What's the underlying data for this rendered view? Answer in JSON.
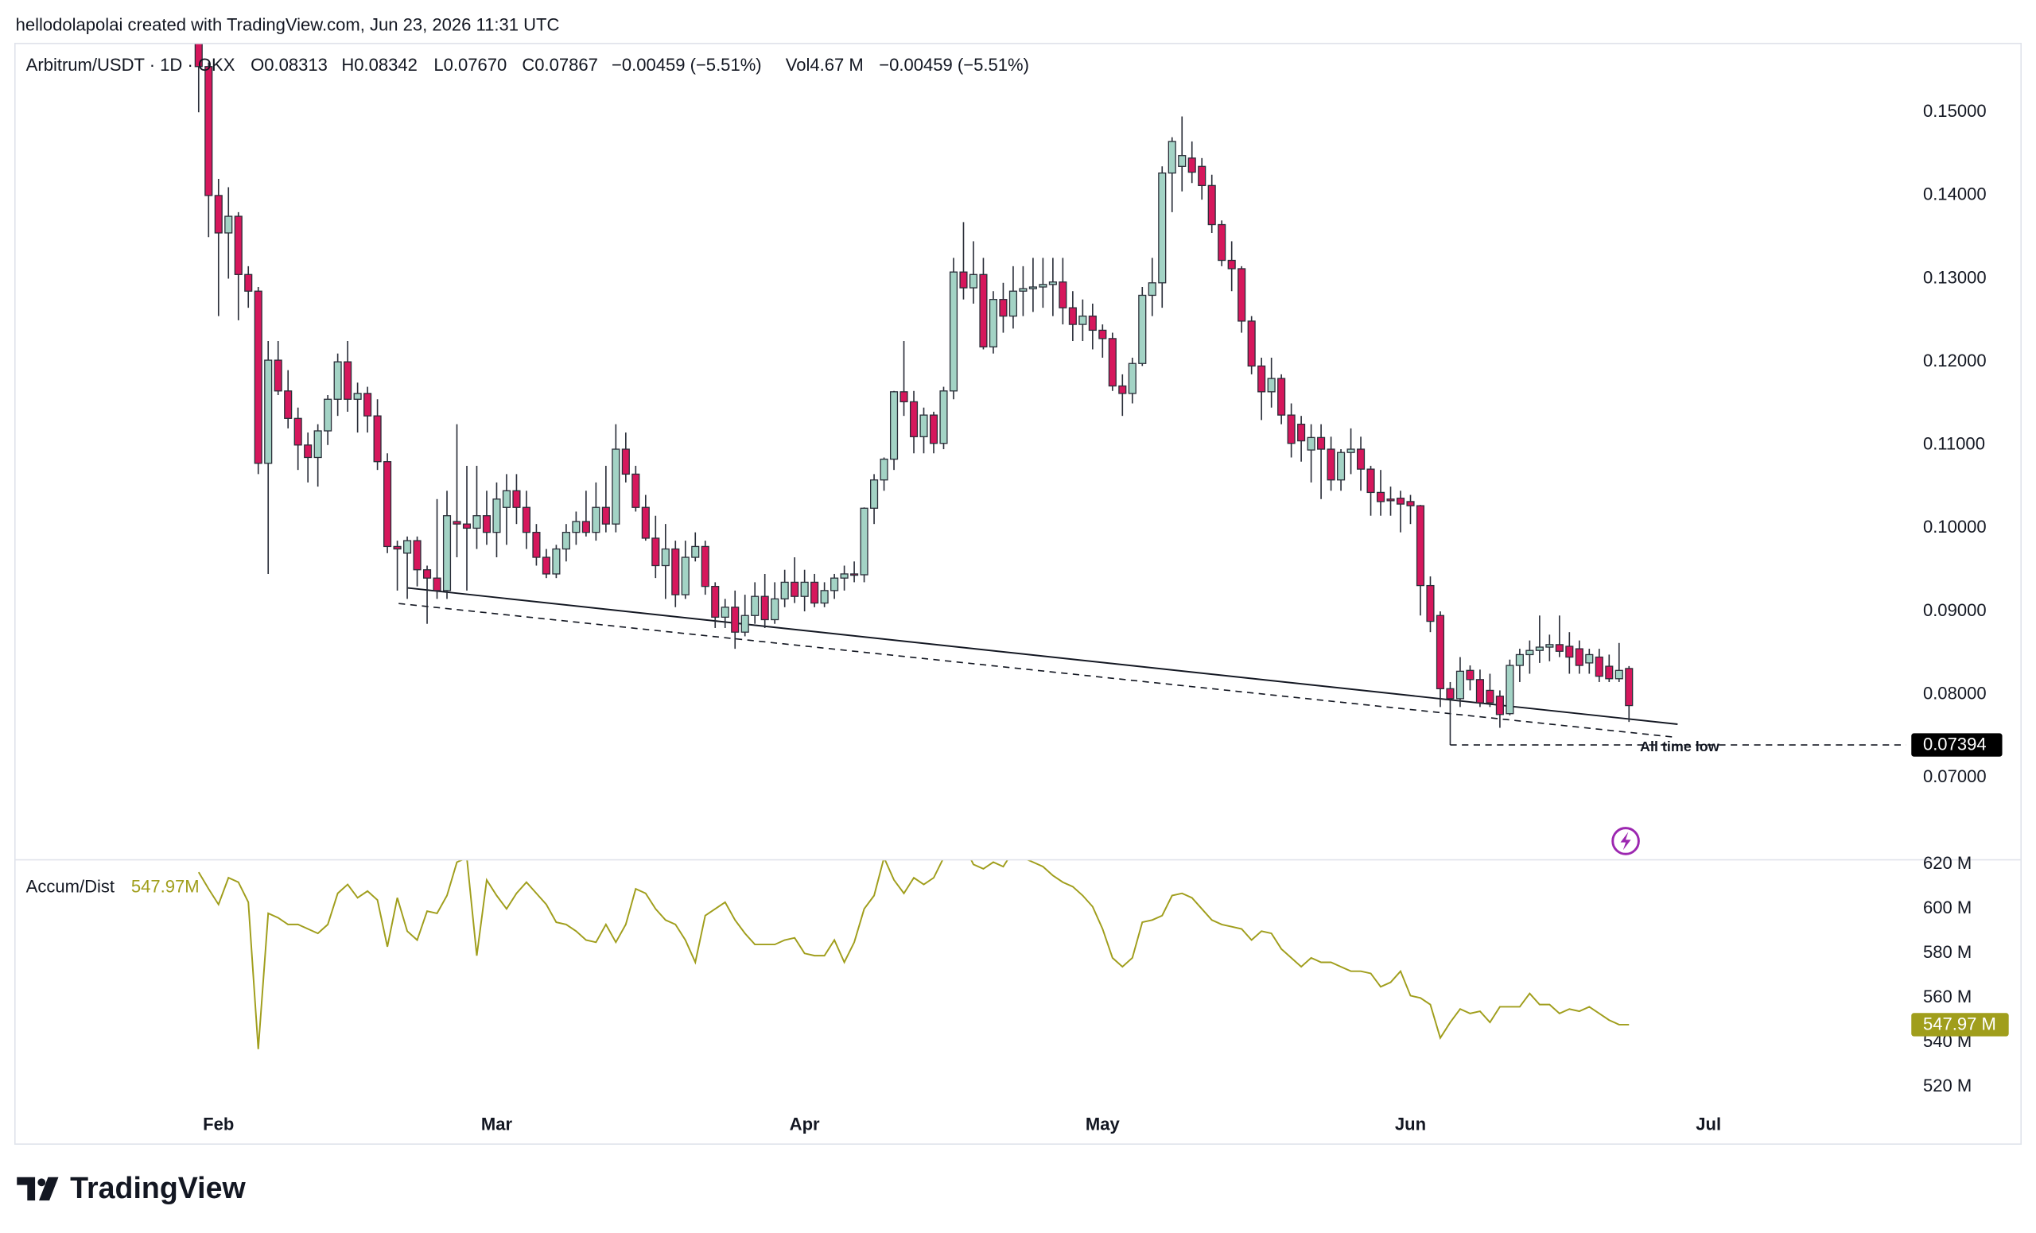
{
  "header": {
    "credit": "hellodolapolai created with TradingView.com, Jun 23, 2026 11:31 UTC"
  },
  "chart_data": [
    {
      "type": "candlestick",
      "title": "Arbitrum/USDT · 1D · OKX",
      "legend_values": [
        "O0.08313",
        "H0.08342",
        "L0.07670",
        "C0.07867",
        "−0.00459 (−5.51%)"
      ],
      "volume_label": "Vol4.67 M",
      "volume_change": "−0.00459 (−5.51%)",
      "up_color": "#a3d3c5",
      "down_color": "#d6175c",
      "ohlc": [
        [
          0.16,
          0.162,
          0.15,
          0.1555
        ],
        [
          0.1555,
          0.156,
          0.135,
          0.14
        ],
        [
          0.14,
          0.142,
          0.1255,
          0.1355
        ],
        [
          0.1355,
          0.141,
          0.13,
          0.1375
        ],
        [
          0.1375,
          0.138,
          0.125,
          0.1305
        ],
        [
          0.1305,
          0.1315,
          0.1265,
          0.1285
        ],
        [
          0.1285,
          0.129,
          0.1065,
          0.1078
        ],
        [
          0.1078,
          0.1225,
          0.0945,
          0.1202
        ],
        [
          0.1202,
          0.1225,
          0.116,
          0.1165
        ],
        [
          0.1165,
          0.119,
          0.112,
          0.1132
        ],
        [
          0.1132,
          0.1145,
          0.107,
          0.11
        ],
        [
          0.11,
          0.1115,
          0.1055,
          0.1085
        ],
        [
          0.1085,
          0.1125,
          0.105,
          0.1117
        ],
        [
          0.1117,
          0.116,
          0.11,
          0.1155
        ],
        [
          0.1155,
          0.121,
          0.1135,
          0.12
        ],
        [
          0.12,
          0.1225,
          0.114,
          0.1155
        ],
        [
          0.1155,
          0.1175,
          0.1115,
          0.1162
        ],
        [
          0.1162,
          0.117,
          0.1115,
          0.1135
        ],
        [
          0.1135,
          0.1155,
          0.107,
          0.108
        ],
        [
          0.108,
          0.109,
          0.097,
          0.0978
        ],
        [
          0.0978,
          0.0985,
          0.0925,
          0.0975
        ],
        [
          0.097,
          0.099,
          0.0915,
          0.0985
        ],
        [
          0.0985,
          0.099,
          0.093,
          0.095
        ],
        [
          0.095,
          0.0955,
          0.0885,
          0.094
        ],
        [
          0.094,
          0.1035,
          0.0915,
          0.0925
        ],
        [
          0.0925,
          0.1045,
          0.0915,
          0.1015
        ],
        [
          0.1008,
          0.1125,
          0.0965,
          0.1005
        ],
        [
          0.1005,
          0.1075,
          0.0925,
          0.1
        ],
        [
          0.1,
          0.1075,
          0.0975,
          0.1015
        ],
        [
          0.1015,
          0.1045,
          0.098,
          0.0995
        ],
        [
          0.0995,
          0.1055,
          0.0965,
          0.1035
        ],
        [
          0.1025,
          0.1065,
          0.098,
          0.1045
        ],
        [
          0.1045,
          0.1065,
          0.1005,
          0.1025
        ],
        [
          0.1025,
          0.1045,
          0.0975,
          0.0995
        ],
        [
          0.0995,
          0.1005,
          0.0955,
          0.0965
        ],
        [
          0.0965,
          0.0975,
          0.094,
          0.0945
        ],
        [
          0.0945,
          0.098,
          0.094,
          0.0975
        ],
        [
          0.0975,
          0.1005,
          0.096,
          0.0995
        ],
        [
          0.0995,
          0.102,
          0.098,
          0.1008
        ],
        [
          0.1008,
          0.1045,
          0.099,
          0.0995
        ],
        [
          0.0995,
          0.1055,
          0.0985,
          0.1025
        ],
        [
          0.1025,
          0.1075,
          0.0995,
          0.1005
        ],
        [
          0.1005,
          0.1125,
          0.0995,
          0.1095
        ],
        [
          0.1095,
          0.1115,
          0.1055,
          0.1065
        ],
        [
          0.1065,
          0.1075,
          0.102,
          0.1025
        ],
        [
          0.1025,
          0.104,
          0.0985,
          0.0988
        ],
        [
          0.0988,
          0.1015,
          0.094,
          0.0955
        ],
        [
          0.0955,
          0.1005,
          0.0915,
          0.0975
        ],
        [
          0.0975,
          0.0985,
          0.0905,
          0.092
        ],
        [
          0.092,
          0.0985,
          0.0915,
          0.0965
        ],
        [
          0.0965,
          0.0995,
          0.096,
          0.0978
        ],
        [
          0.0978,
          0.0985,
          0.092,
          0.093
        ],
        [
          0.093,
          0.0935,
          0.088,
          0.0893
        ],
        [
          0.0893,
          0.0915,
          0.088,
          0.0905
        ],
        [
          0.0905,
          0.0925,
          0.0855,
          0.0875
        ],
        [
          0.0875,
          0.092,
          0.087,
          0.0895
        ],
        [
          0.0895,
          0.0935,
          0.0885,
          0.0918
        ],
        [
          0.0918,
          0.0945,
          0.088,
          0.089
        ],
        [
          0.089,
          0.0935,
          0.0885,
          0.0915
        ],
        [
          0.0915,
          0.095,
          0.0905,
          0.0935
        ],
        [
          0.0935,
          0.0965,
          0.091,
          0.0918
        ],
        [
          0.0918,
          0.095,
          0.09,
          0.0935
        ],
        [
          0.0935,
          0.0945,
          0.0905,
          0.091
        ],
        [
          0.091,
          0.0935,
          0.0905,
          0.0925
        ],
        [
          0.0925,
          0.0945,
          0.0915,
          0.094
        ],
        [
          0.094,
          0.0955,
          0.0925,
          0.0945
        ],
        [
          0.0945,
          0.096,
          0.0935,
          0.0944
        ],
        [
          0.0944,
          0.1025,
          0.0935,
          0.1024
        ],
        [
          0.1024,
          0.1065,
          0.1005,
          0.1058
        ],
        [
          0.1058,
          0.1085,
          0.1045,
          0.1083
        ],
        [
          0.1083,
          0.1165,
          0.107,
          0.1164
        ],
        [
          0.1164,
          0.1225,
          0.1135,
          0.1152
        ],
        [
          0.1152,
          0.1165,
          0.109,
          0.111
        ],
        [
          0.111,
          0.1145,
          0.109,
          0.1136
        ],
        [
          0.1136,
          0.114,
          0.109,
          0.1102
        ],
        [
          0.1102,
          0.117,
          0.1095,
          0.1165
        ],
        [
          0.1165,
          0.1325,
          0.1155,
          0.1308
        ],
        [
          0.1308,
          0.1368,
          0.1275,
          0.1289
        ],
        [
          0.1289,
          0.1345,
          0.127,
          0.1305
        ],
        [
          0.1305,
          0.1325,
          0.1215,
          0.1218
        ],
        [
          0.1218,
          0.1285,
          0.121,
          0.1275
        ],
        [
          0.1275,
          0.1295,
          0.1235,
          0.1255
        ],
        [
          0.1255,
          0.1315,
          0.124,
          0.1285
        ],
        [
          0.1285,
          0.1315,
          0.1255,
          0.1288
        ],
        [
          0.1288,
          0.1325,
          0.126,
          0.129
        ],
        [
          0.129,
          0.1325,
          0.1265,
          0.1293
        ],
        [
          0.1293,
          0.1325,
          0.1255,
          0.1296
        ],
        [
          0.1296,
          0.1325,
          0.1245,
          0.1265
        ],
        [
          0.1265,
          0.1285,
          0.1225,
          0.1245
        ],
        [
          0.1245,
          0.1275,
          0.1225,
          0.1255
        ],
        [
          0.1255,
          0.127,
          0.1215,
          0.1238
        ],
        [
          0.1238,
          0.1245,
          0.1205,
          0.1228
        ],
        [
          0.1228,
          0.1235,
          0.1165,
          0.1171
        ],
        [
          0.1171,
          0.1185,
          0.1135,
          0.1162
        ],
        [
          0.1162,
          0.1205,
          0.115,
          0.1198
        ],
        [
          0.1198,
          0.129,
          0.1195,
          0.128
        ],
        [
          0.128,
          0.1325,
          0.1255,
          0.1295
        ],
        [
          0.1295,
          0.1435,
          0.1265,
          0.1427
        ],
        [
          0.1427,
          0.147,
          0.138,
          0.1465
        ],
        [
          0.1435,
          0.1495,
          0.1405,
          0.1448
        ],
        [
          0.1445,
          0.1465,
          0.1415,
          0.1428
        ],
        [
          0.1435,
          0.1445,
          0.1395,
          0.1412
        ],
        [
          0.1412,
          0.1425,
          0.1355,
          0.1365
        ],
        [
          0.1365,
          0.137,
          0.1315,
          0.1322
        ],
        [
          0.1322,
          0.1345,
          0.1285,
          0.1312
        ],
        [
          0.1312,
          0.1315,
          0.1235,
          0.1249
        ],
        [
          0.1249,
          0.1255,
          0.1185,
          0.1195
        ],
        [
          0.1195,
          0.1205,
          0.113,
          0.1164
        ],
        [
          0.1164,
          0.1205,
          0.1145,
          0.118
        ],
        [
          0.118,
          0.1185,
          0.1125,
          0.1136
        ],
        [
          0.1136,
          0.115,
          0.1085,
          0.1102
        ],
        [
          0.1125,
          0.1135,
          0.108,
          0.1105
        ],
        [
          0.1094,
          0.1125,
          0.1055,
          0.1109
        ],
        [
          0.1109,
          0.1125,
          0.1035,
          0.1095
        ],
        [
          0.1095,
          0.111,
          0.1045,
          0.1058
        ],
        [
          0.1058,
          0.1095,
          0.1045,
          0.1091
        ],
        [
          0.1091,
          0.112,
          0.1065,
          0.1095
        ],
        [
          0.1095,
          0.111,
          0.1045,
          0.1071
        ],
        [
          0.1071,
          0.1075,
          0.1015,
          0.1043
        ],
        [
          0.1043,
          0.107,
          0.1015,
          0.1032
        ],
        [
          0.1035,
          0.105,
          0.1015,
          0.1033
        ],
        [
          0.1036,
          0.1045,
          0.0995,
          0.1029
        ],
        [
          0.1032,
          0.104,
          0.1005,
          0.1027
        ],
        [
          0.1027,
          0.1028,
          0.0895,
          0.0931
        ],
        [
          0.0931,
          0.0942,
          0.0875,
          0.0888
        ],
        [
          0.0895,
          0.09,
          0.0785,
          0.0807
        ],
        [
          0.0807,
          0.0815,
          0.07394,
          0.0795
        ],
        [
          0.0795,
          0.0845,
          0.0785,
          0.0828
        ],
        [
          0.0829,
          0.0835,
          0.0805,
          0.0818
        ],
        [
          0.0818,
          0.083,
          0.0785,
          0.079
        ],
        [
          0.0805,
          0.0825,
          0.0785,
          0.079
        ],
        [
          0.0798,
          0.0805,
          0.076,
          0.0776
        ],
        [
          0.0777,
          0.0842,
          0.0775,
          0.0835
        ],
        [
          0.0835,
          0.0855,
          0.0815,
          0.0848
        ],
        [
          0.0848,
          0.0865,
          0.0825,
          0.0853
        ],
        [
          0.0853,
          0.0895,
          0.0838,
          0.0857
        ],
        [
          0.0857,
          0.0872,
          0.084,
          0.086
        ],
        [
          0.086,
          0.0895,
          0.0845,
          0.0852
        ],
        [
          0.0858,
          0.0875,
          0.0825,
          0.0845
        ],
        [
          0.0855,
          0.0865,
          0.0825,
          0.0835
        ],
        [
          0.0838,
          0.0855,
          0.0825,
          0.0848
        ],
        [
          0.0845,
          0.0855,
          0.0815,
          0.0822
        ],
        [
          0.0834,
          0.0848,
          0.0815,
          0.0819
        ],
        [
          0.0819,
          0.0862,
          0.0815,
          0.0829
        ],
        [
          0.08313,
          0.08342,
          0.0767,
          0.07867
        ]
      ],
      "xlim": [
        -18.43,
        171.9
      ],
      "xticks": [
        {
          "value": 2,
          "label": "Feb"
        },
        {
          "value": 30,
          "label": "Mar"
        },
        {
          "value": 61,
          "label": "Apr"
        },
        {
          "value": 91,
          "label": "May"
        },
        {
          "value": 122,
          "label": "Jun"
        },
        {
          "value": 152,
          "label": "Jul"
        }
      ],
      "ylim": [
        0.0602,
        0.1582
      ],
      "yticks": [
        {
          "value": 0.07,
          "label": "0.07000"
        },
        {
          "value": 0.08,
          "label": "0.08000"
        },
        {
          "value": 0.09,
          "label": "0.09000"
        },
        {
          "value": 0.1,
          "label": "0.10000"
        },
        {
          "value": 0.11,
          "label": "0.11000"
        },
        {
          "value": 0.12,
          "label": "0.12000"
        },
        {
          "value": 0.13,
          "label": "0.13000"
        },
        {
          "value": 0.14,
          "label": "0.14000"
        },
        {
          "value": 0.15,
          "label": "0.15000"
        }
      ],
      "annotation": "All time low",
      "atl": 0.07394
    },
    {
      "type": "line",
      "series": [
        {
          "name": "Accum/Dist",
          "color": "#a09e1c",
          "values": [
            616.5,
            609,
            602,
            614,
            612,
            603,
            537,
            598,
            596,
            593,
            593,
            591,
            589,
            593,
            607,
            611,
            605,
            608,
            604,
            583,
            605,
            590,
            586,
            599,
            598,
            606,
            621,
            623,
            579,
            613,
            606,
            600,
            607,
            612,
            607,
            602,
            594,
            593,
            590,
            586,
            585,
            593,
            585,
            593,
            609,
            607,
            600,
            595,
            593,
            586,
            576,
            597,
            600,
            603,
            595,
            589,
            584,
            584,
            584,
            586,
            587,
            580,
            579,
            579,
            586,
            576,
            585,
            600,
            606,
            623,
            613,
            607,
            614,
            611,
            614,
            623,
            630,
            629,
            620,
            618,
            621,
            619,
            626,
            623,
            621,
            619,
            615,
            612,
            610,
            606,
            601,
            591,
            578,
            574,
            578,
            594,
            595,
            597,
            606,
            607,
            605,
            600,
            595,
            593,
            592,
            591,
            586,
            590,
            589,
            582,
            578,
            574,
            578,
            576,
            576,
            574,
            572,
            572,
            571,
            565,
            567,
            572,
            561,
            560,
            557,
            542,
            549,
            555,
            553,
            554,
            549,
            556,
            556,
            556,
            562,
            557,
            557,
            553,
            555,
            554,
            556,
            553,
            550,
            548,
            547.97
          ]
        }
      ],
      "legend_value": "547.97M",
      "last_value_label": "547.97 M",
      "ylim": [
        511.5,
        621.75
      ],
      "yticks": [
        {
          "value": 520,
          "label": "520 M"
        },
        {
          "value": 540,
          "label": "540 M"
        },
        {
          "value": 560,
          "label": "560 M"
        },
        {
          "value": 580,
          "label": "580 M"
        },
        {
          "value": 600,
          "label": "600 M"
        },
        {
          "value": 620,
          "label": "620 M"
        }
      ]
    }
  ],
  "footer": {
    "logo": "TradingView"
  }
}
